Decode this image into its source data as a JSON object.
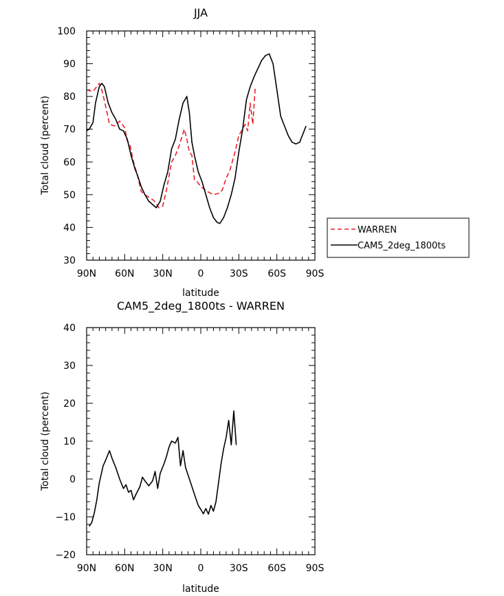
{
  "chart_data": [
    {
      "type": "line",
      "title": "JJA",
      "xlabel": "latitude",
      "ylabel": "Total cloud (percent)",
      "xlim": [
        90,
        -90
      ],
      "ylim": [
        30,
        100
      ],
      "x_ticks": [
        90,
        60,
        30,
        0,
        -30,
        -60,
        -90
      ],
      "x_tick_labels": [
        "90N",
        "60N",
        "30N",
        "0",
        "30S",
        "60S",
        "90S"
      ],
      "y_ticks": [
        30,
        40,
        50,
        60,
        70,
        80,
        90,
        100
      ],
      "y_tick_labels": [
        "30",
        "40",
        "50",
        "60",
        "70",
        "80",
        "90",
        "100"
      ],
      "legend": {
        "placement": "right",
        "entries": [
          "WARREN",
          "CAM5_2deg_1800ts"
        ]
      },
      "series": [
        {
          "name": "WARREN",
          "color": "#e8202a",
          "dash": "dashed",
          "points": [
            [
              90,
              82
            ],
            [
              85,
              81.5
            ],
            [
              80,
              84
            ],
            [
              78,
              82
            ],
            [
              75,
              77
            ],
            [
              72,
              71.5
            ],
            [
              68,
              71
            ],
            [
              64,
              72.5
            ],
            [
              60,
              70.5
            ],
            [
              58,
              66.5
            ],
            [
              56,
              65.5
            ],
            [
              53,
              60
            ],
            [
              50,
              56
            ],
            [
              47,
              51
            ],
            [
              44,
              50
            ],
            [
              40,
              49
            ],
            [
              37,
              48.2
            ],
            [
              33,
              46
            ],
            [
              30,
              46.5
            ],
            [
              27,
              51.5
            ],
            [
              23,
              60
            ],
            [
              20,
              62
            ],
            [
              17,
              65
            ],
            [
              13,
              70
            ],
            [
              11,
              67
            ],
            [
              9,
              63
            ],
            [
              7,
              62
            ],
            [
              5,
              54.5
            ],
            [
              3,
              54
            ],
            [
              0,
              52.5
            ],
            [
              -5,
              51
            ],
            [
              -10,
              50
            ],
            [
              -15,
              50.5
            ],
            [
              -17,
              51.5
            ],
            [
              -20,
              55
            ],
            [
              -23,
              57.5
            ],
            [
              -27,
              63
            ],
            [
              -30,
              68
            ],
            [
              -35,
              71.5
            ],
            [
              -37,
              69.5
            ],
            [
              -39,
              78
            ],
            [
              -41,
              71.5
            ],
            [
              -43,
              83
            ]
          ]
        },
        {
          "name": "CAM5_2deg_1800ts",
          "color": "#000000",
          "dash": "solid",
          "points": [
            [
              90,
              69.5
            ],
            [
              88,
              70
            ],
            [
              85,
              72
            ],
            [
              83,
              78
            ],
            [
              80,
              83
            ],
            [
              78,
              84
            ],
            [
              76,
              83
            ],
            [
              73,
              78
            ],
            [
              70,
              75
            ],
            [
              67,
              73
            ],
            [
              64,
              70
            ],
            [
              61,
              69.5
            ],
            [
              58,
              67
            ],
            [
              55,
              62
            ],
            [
              52,
              58
            ],
            [
              50,
              56
            ],
            [
              47,
              52.5
            ],
            [
              44,
              50
            ],
            [
              41,
              48
            ],
            [
              38,
              47
            ],
            [
              35,
              46
            ],
            [
              32,
              48
            ],
            [
              29,
              53
            ],
            [
              26,
              57
            ],
            [
              23,
              64
            ],
            [
              20,
              67
            ],
            [
              17,
              73
            ],
            [
              14,
              78
            ],
            [
              11,
              80
            ],
            [
              9,
              75
            ],
            [
              7,
              66
            ],
            [
              5,
              62
            ],
            [
              2,
              57
            ],
            [
              -1,
              54
            ],
            [
              -4,
              50
            ],
            [
              -7,
              46
            ],
            [
              -10,
              43
            ],
            [
              -13,
              41.5
            ],
            [
              -15,
              41.2
            ],
            [
              -18,
              43
            ],
            [
              -21,
              46
            ],
            [
              -24,
              50
            ],
            [
              -27,
              55
            ],
            [
              -30,
              63
            ],
            [
              -33,
              70
            ],
            [
              -36,
              79
            ],
            [
              -39,
              83
            ],
            [
              -42,
              86
            ],
            [
              -45,
              88.5
            ],
            [
              -48,
              91
            ],
            [
              -51,
              92.5
            ],
            [
              -54,
              93
            ],
            [
              -57,
              90
            ],
            [
              -60,
              82
            ],
            [
              -63,
              74
            ],
            [
              -66,
              71
            ],
            [
              -69,
              68
            ],
            [
              -72,
              66
            ],
            [
              -75,
              65.5
            ],
            [
              -78,
              66
            ],
            [
              -81,
              69
            ],
            [
              -83,
              71
            ]
          ]
        }
      ]
    },
    {
      "type": "line",
      "title": "CAM5_2deg_1800ts - WARREN",
      "xlabel": "latitude",
      "ylabel": "Total cloud (percent)",
      "xlim": [
        90,
        -90
      ],
      "ylim": [
        -20,
        40
      ],
      "x_ticks": [
        90,
        60,
        30,
        0,
        -30,
        -60,
        -90
      ],
      "x_tick_labels": [
        "90N",
        "60N",
        "30N",
        "0",
        "30S",
        "60S",
        "90S"
      ],
      "y_ticks": [
        -20,
        -10,
        0,
        10,
        20,
        30,
        40
      ],
      "y_tick_labels": [
        "−20",
        "−10",
        "0",
        "10",
        "20",
        "30",
        "40"
      ],
      "series": [
        {
          "color": "#000000",
          "dash": "solid",
          "points": [
            [
              88,
              -12.5
            ],
            [
              86,
              -11.5
            ],
            [
              84,
              -9
            ],
            [
              82,
              -5.5
            ],
            [
              80,
              -1
            ],
            [
              77,
              3.5
            ],
            [
              75,
              5
            ],
            [
              72,
              7.5
            ],
            [
              70,
              5.5
            ],
            [
              67,
              3
            ],
            [
              64,
              0
            ],
            [
              61,
              -2.5
            ],
            [
              59,
              -1.5
            ],
            [
              57,
              -3.5
            ],
            [
              55,
              -3
            ],
            [
              53,
              -5.5
            ],
            [
              51,
              -4
            ],
            [
              48,
              -2
            ],
            [
              46,
              0.5
            ],
            [
              44,
              -0.5
            ],
            [
              41,
              -1.8
            ],
            [
              38,
              -0.5
            ],
            [
              36,
              2
            ],
            [
              34,
              -2.5
            ],
            [
              32,
              1.5
            ],
            [
              29,
              4
            ],
            [
              27,
              6
            ],
            [
              25,
              8.5
            ],
            [
              23,
              10
            ],
            [
              20,
              9.5
            ],
            [
              18,
              11
            ],
            [
              16,
              3.5
            ],
            [
              14,
              7.5
            ],
            [
              12,
              3
            ],
            [
              10,
              1
            ],
            [
              7,
              -2
            ],
            [
              4,
              -5
            ],
            [
              2,
              -7
            ],
            [
              0,
              -8
            ],
            [
              -2,
              -9.2
            ],
            [
              -4,
              -7.8
            ],
            [
              -6,
              -9.3
            ],
            [
              -8,
              -7
            ],
            [
              -10,
              -8.5
            ],
            [
              -12,
              -6
            ],
            [
              -14,
              -1
            ],
            [
              -16,
              4
            ],
            [
              -18,
              8
            ],
            [
              -20,
              11
            ],
            [
              -22,
              15.5
            ],
            [
              -24,
              9
            ],
            [
              -26,
              18
            ],
            [
              -28,
              9
            ]
          ]
        }
      ]
    }
  ]
}
